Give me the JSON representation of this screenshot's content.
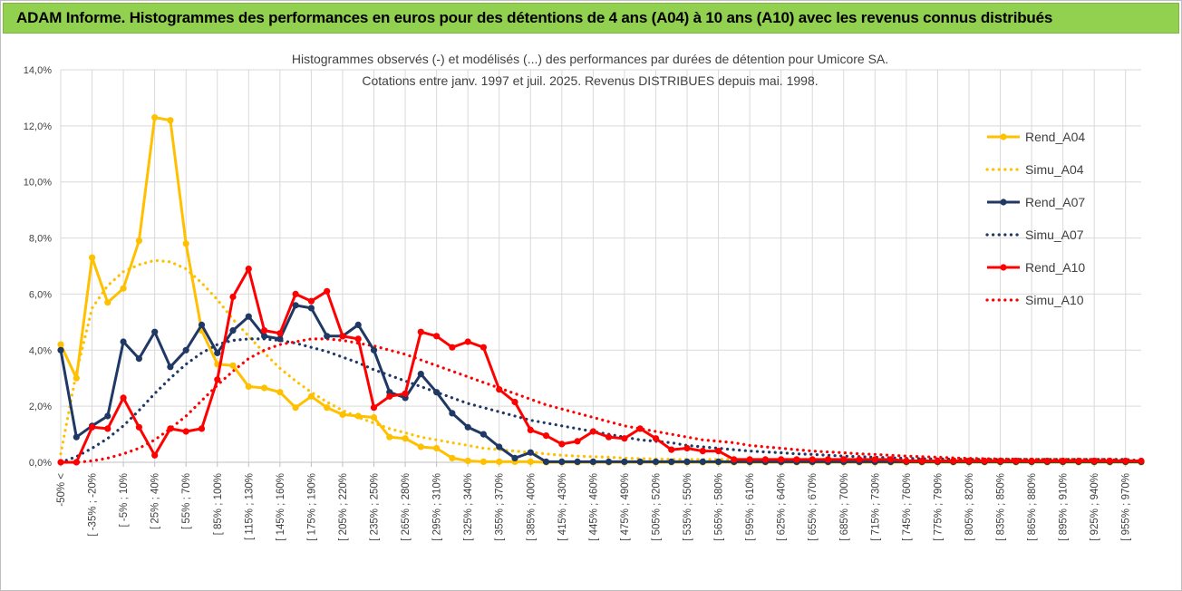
{
  "banner": {
    "title": "ADAM Informe. Histogrammes des performances en euros pour des détentions de 4 ans (A04) à 10 ans (A10) avec les revenus connus distribués"
  },
  "colors": {
    "banner_bg": "#92d050",
    "A04": "#ffc000",
    "A07": "#1f3864",
    "A10": "#ff0000",
    "grid": "#d9d9d9"
  },
  "chart_data": {
    "type": "line",
    "title": "Histogrammes observés (-) et modélisés (...) des performances par durées de détention pour Umicore SA.",
    "subtitle": "Cotations entre janv. 1997 et juil. 2025. Revenus DISTRIBUES depuis mai. 1998.",
    "xlabel": "",
    "ylabel": "",
    "ylim": [
      0,
      14
    ],
    "y_ticks": [
      "0,0%",
      "2,0%",
      "4,0%",
      "6,0%",
      "8,0%",
      "10,0%",
      "12,0%",
      "14,0%"
    ],
    "grid": true,
    "legend_position": "right",
    "x_tick_labels": [
      "-50% <",
      "[ -35% ; -20%",
      "[ -5% ; 10%",
      "[ 25% ; 40%",
      "[ 55% ; 70%",
      "[ 85% ; 100%",
      "[ 115% ; 130%",
      "[ 145% ; 160%",
      "[ 175% ; 190%",
      "[ 205% ; 220%",
      "[ 235% ; 250%",
      "[ 265% ; 280%",
      "[ 295% ; 310%",
      "[ 325% ; 340%",
      "[ 355% ; 370%",
      "[ 385% ; 400%",
      "[ 415% ; 430%",
      "[ 445% ; 460%",
      "[ 475% ; 490%",
      "[ 505% ; 520%",
      "[ 535% ; 550%",
      "[ 565% ; 580%",
      "[ 595% ; 610%",
      "[ 625% ; 640%",
      "[ 655% ; 670%",
      "[ 685% ; 700%",
      "[ 715% ; 730%",
      "[ 745% ; 760%",
      "[ 775% ; 790%",
      "[ 805% ; 820%",
      "[ 835% ; 850%",
      "[ 865% ; 880%",
      "[ 895% ; 910%",
      "[ 925% ; 940%",
      "[ 955% ; 970%"
    ],
    "series": [
      {
        "name": "Rend_A04",
        "style": "solid",
        "color": "#ffc000",
        "values": [
          4.2,
          3.0,
          7.3,
          5.7,
          6.2,
          7.9,
          12.3,
          12.2,
          7.8,
          4.7,
          3.5,
          3.45,
          2.7,
          2.65,
          2.5,
          1.95,
          2.35,
          1.95,
          1.7,
          1.65,
          1.6,
          0.9,
          0.85,
          0.55,
          0.5,
          0.15,
          0.05,
          0.02,
          0.02,
          0.02,
          0.02,
          0,
          0,
          0,
          0,
          0,
          0,
          0,
          0,
          0,
          0,
          0,
          0,
          0,
          0,
          0,
          0,
          0,
          0,
          0,
          0,
          0,
          0,
          0,
          0,
          0,
          0,
          0,
          0,
          0,
          0,
          0,
          0,
          0,
          0,
          0,
          0,
          0,
          0,
          0
        ]
      },
      {
        "name": "Simu_A04",
        "style": "dotted",
        "color": "#ffc000",
        "values": [
          0.3,
          3.2,
          5.5,
          6.3,
          6.8,
          7.05,
          7.2,
          7.15,
          6.9,
          6.4,
          5.8,
          5.1,
          4.5,
          3.9,
          3.35,
          2.9,
          2.5,
          2.15,
          1.85,
          1.6,
          1.4,
          1.2,
          1.05,
          0.9,
          0.8,
          0.7,
          0.6,
          0.5,
          0.45,
          0.4,
          0.35,
          0.3,
          0.25,
          0.22,
          0.2,
          0.18,
          0.15,
          0.13,
          0.12,
          0.1,
          0.1,
          0.1,
          0.1,
          0.1,
          0.1,
          0.1,
          0.1,
          0.1,
          0.1,
          0.1,
          0.1,
          0.1,
          0.1,
          0.1,
          0.1,
          0.1,
          0.1,
          0.1,
          0.1,
          0.1,
          0.1,
          0.1,
          0.1,
          0.1,
          0.1,
          0.1,
          0.1,
          0.1,
          0.1,
          0.05
        ]
      },
      {
        "name": "Rend_A07",
        "style": "solid",
        "color": "#1f3864",
        "values": [
          4.0,
          0.9,
          1.3,
          1.65,
          4.3,
          3.7,
          4.65,
          3.4,
          4.0,
          4.9,
          3.9,
          4.7,
          5.2,
          4.5,
          4.4,
          5.6,
          5.5,
          4.5,
          4.5,
          4.9,
          4.0,
          2.5,
          2.3,
          3.15,
          2.5,
          1.75,
          1.25,
          1.0,
          0.55,
          0.15,
          0.35,
          0.02,
          0.02,
          0.02,
          0.02,
          0.02,
          0.02,
          0.02,
          0.02,
          0.02,
          0.02,
          0.02,
          0.02,
          0.02,
          0.02,
          0.02,
          0.02,
          0.02,
          0.02,
          0.02,
          0.02,
          0.02,
          0.02,
          0.02,
          0.02,
          0.02,
          0.02,
          0.02,
          0.02,
          0.02,
          0.02,
          0.02,
          0.02,
          0.02,
          0.02,
          0.02,
          0.02,
          0.02,
          0.02,
          0.02
        ]
      },
      {
        "name": "Simu_A07",
        "style": "dotted",
        "color": "#1f3864",
        "values": [
          0.0,
          0.2,
          0.5,
          0.85,
          1.3,
          1.85,
          2.45,
          3.0,
          3.5,
          3.9,
          4.2,
          4.35,
          4.4,
          4.4,
          4.35,
          4.25,
          4.1,
          3.95,
          3.75,
          3.55,
          3.3,
          3.1,
          2.9,
          2.7,
          2.5,
          2.3,
          2.1,
          1.95,
          1.8,
          1.65,
          1.5,
          1.4,
          1.3,
          1.2,
          1.1,
          1.0,
          0.9,
          0.8,
          0.75,
          0.7,
          0.6,
          0.55,
          0.5,
          0.45,
          0.4,
          0.37,
          0.34,
          0.3,
          0.28,
          0.25,
          0.22,
          0.2,
          0.18,
          0.16,
          0.14,
          0.13,
          0.12,
          0.11,
          0.1,
          0.1,
          0.1,
          0.1,
          0.1,
          0.1,
          0.1,
          0.1,
          0.1,
          0.1,
          0.1,
          0.05
        ]
      },
      {
        "name": "Rend_A10",
        "style": "solid",
        "color": "#ff0000",
        "values": [
          0.0,
          0.0,
          1.25,
          1.2,
          2.3,
          1.25,
          0.25,
          1.2,
          1.1,
          1.2,
          2.95,
          5.9,
          6.9,
          4.7,
          4.6,
          6.0,
          5.75,
          6.1,
          4.5,
          4.4,
          1.95,
          2.35,
          2.45,
          4.65,
          4.5,
          4.1,
          4.3,
          4.1,
          2.6,
          2.15,
          1.15,
          0.95,
          0.65,
          0.75,
          1.1,
          0.9,
          0.85,
          1.2,
          0.85,
          0.45,
          0.5,
          0.4,
          0.4,
          0.1,
          0.1,
          0.1,
          0.1,
          0.1,
          0.1,
          0.1,
          0.1,
          0.1,
          0.1,
          0.1,
          0.05,
          0.05,
          0.05,
          0.05,
          0.05,
          0.05,
          0.05,
          0.05,
          0.05,
          0.05,
          0.05,
          0.05,
          0.05,
          0.05,
          0.05,
          0.05
        ]
      },
      {
        "name": "Simu_A10",
        "style": "dotted",
        "color": "#ff0000",
        "values": [
          0.0,
          0.0,
          0.05,
          0.15,
          0.3,
          0.5,
          0.8,
          1.2,
          1.65,
          2.2,
          2.75,
          3.25,
          3.7,
          4.0,
          4.2,
          4.3,
          4.4,
          4.4,
          4.35,
          4.25,
          4.15,
          4.0,
          3.85,
          3.65,
          3.45,
          3.25,
          3.05,
          2.85,
          2.65,
          2.45,
          2.25,
          2.05,
          1.9,
          1.75,
          1.6,
          1.45,
          1.3,
          1.2,
          1.1,
          1.0,
          0.9,
          0.8,
          0.75,
          0.7,
          0.6,
          0.55,
          0.5,
          0.45,
          0.4,
          0.37,
          0.34,
          0.3,
          0.28,
          0.25,
          0.22,
          0.2,
          0.18,
          0.16,
          0.14,
          0.13,
          0.12,
          0.11,
          0.1,
          0.1,
          0.1,
          0.1,
          0.1,
          0.1,
          0.05,
          0.05
        ]
      }
    ]
  }
}
